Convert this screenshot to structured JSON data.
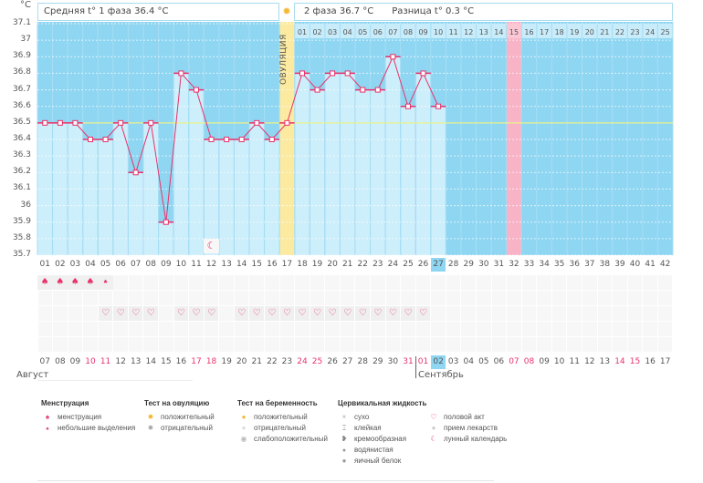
{
  "unit": "°C",
  "header": {
    "phase1": "Средняя t° 1 фаза 36.4 °C",
    "phase2": "2 фаза 36.7 °C",
    "diff": "Разница t° 0.3 °C"
  },
  "ovulation_label": "ОВУЛЯЦИЯ",
  "colors": {
    "sky": "#8fd6f2",
    "bar": "#cdeefb",
    "ovulation": "#fbeaa0",
    "line": "#e8336b",
    "pink_col": "#f9b3c6",
    "today": "#8fd6f2"
  },
  "y_ticks": [
    "37.1",
    "37",
    "36.9",
    "36.8",
    "36.7",
    "36.6",
    "36.5",
    "36.4",
    "36.3",
    "36.2",
    "36.1",
    "36",
    "35.9",
    "35.8",
    "35.7"
  ],
  "chart_data": {
    "type": "line",
    "ylim": [
      35.7,
      37.1
    ],
    "coverline": 36.5,
    "ovulation_day": 17,
    "x": [
      1,
      2,
      3,
      4,
      5,
      6,
      7,
      8,
      9,
      10,
      11,
      12,
      13,
      14,
      15,
      16,
      17,
      18,
      19,
      20,
      21,
      22,
      23,
      24,
      25,
      26,
      27
    ],
    "values": [
      36.5,
      36.5,
      36.5,
      36.4,
      36.4,
      36.5,
      36.2,
      36.5,
      35.9,
      36.8,
      36.7,
      36.4,
      36.4,
      36.4,
      36.5,
      36.4,
      36.5,
      36.8,
      36.7,
      36.8,
      36.8,
      36.7,
      36.7,
      36.9,
      36.6,
      36.8,
      36.6
    ]
  },
  "cycle_days": [
    "01",
    "02",
    "03",
    "04",
    "05",
    "06",
    "07",
    "08",
    "09",
    "10",
    "11",
    "12",
    "13",
    "14",
    "15",
    "16",
    "17",
    "18",
    "19",
    "20",
    "21",
    "22",
    "23",
    "24",
    "25",
    "26",
    "27",
    "28",
    "29",
    "30",
    "31",
    "32",
    "33",
    "34",
    "35",
    "36",
    "37",
    "38",
    "39",
    "40",
    "41",
    "42"
  ],
  "today_cycle_day": "27",
  "phase2_days": [
    "01",
    "02",
    "03",
    "04",
    "05",
    "06",
    "07",
    "08",
    "09",
    "10",
    "11",
    "12",
    "13",
    "14",
    "15",
    "16",
    "17",
    "18",
    "19",
    "20",
    "21",
    "22",
    "23",
    "24",
    "25"
  ],
  "phase2_highlight": "15",
  "dates": [
    "07",
    "08",
    "09",
    "10",
    "11",
    "12",
    "13",
    "14",
    "15",
    "16",
    "17",
    "18",
    "19",
    "20",
    "21",
    "22",
    "23",
    "24",
    "25",
    "26",
    "27",
    "28",
    "29",
    "30",
    "31",
    "01",
    "02",
    "03",
    "04",
    "05",
    "06",
    "07",
    "08",
    "09",
    "10",
    "11",
    "12",
    "13",
    "14",
    "15",
    "16",
    "17"
  ],
  "weekend_indexes": [
    3,
    4,
    10,
    11,
    17,
    18,
    24,
    25,
    31,
    32,
    38,
    39
  ],
  "today_date_index": 26,
  "months": {
    "aug": "Август",
    "sep": "Сентябрь"
  },
  "menstruation_days": [
    1,
    2,
    3,
    4
  ],
  "spotting_days": [
    5
  ],
  "intercourse_days": [
    5,
    6,
    7,
    8,
    10,
    11,
    12,
    14,
    15,
    16,
    17,
    18,
    19,
    20,
    21,
    22,
    23,
    24,
    25,
    26
  ],
  "moon_day": 12,
  "legend": {
    "menstruation": {
      "title": "Менструация",
      "items": [
        "менструация",
        "небольшие выделения"
      ]
    },
    "ovulation_test": {
      "title": "Тест на овуляцию",
      "items": [
        "положительный",
        "отрицательный"
      ]
    },
    "pregnancy_test": {
      "title": "Тест на беременность",
      "items": [
        "положительный",
        "отрицательный",
        "слабоположительный"
      ]
    },
    "cervical": {
      "title": "Цервикальная жидкость",
      "items": [
        "сухо",
        "клейкая",
        "кремообразная",
        "водянистая",
        "яичный белок"
      ]
    },
    "other": {
      "items": [
        "половой акт",
        "прием лекарств",
        "лунный календарь"
      ]
    }
  }
}
